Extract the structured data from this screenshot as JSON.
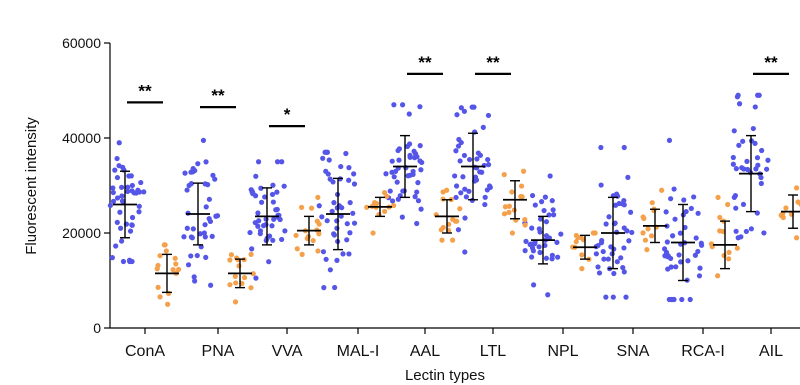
{
  "chart_data": {
    "type": "scatter",
    "xlabel": "Lectin types",
    "ylabel": "Fluorescent intensity",
    "ylim": [
      0,
      60000
    ],
    "yticks": [
      0,
      20000,
      40000,
      60000
    ],
    "categories": [
      "ConA",
      "PNA",
      "VVA",
      "MAL-I",
      "AAL",
      "LTL",
      "NPL",
      "SNA",
      "RCA-I",
      "AIL"
    ],
    "colors": {
      "group1": "#5555e8",
      "group2": "#f5a04a"
    },
    "series": [
      {
        "means": [
          26000,
          24000,
          23500,
          24000,
          34000,
          34000,
          18500,
          20000,
          18000,
          32500
        ],
        "sd": [
          7000,
          6500,
          6000,
          7500,
          6500,
          7000,
          5000,
          7500,
          8000,
          8000
        ],
        "n": [
          45,
          40,
          45,
          45,
          45,
          45,
          40,
          45,
          45,
          40
        ],
        "ranges": [
          [
            14000,
            39000
          ],
          [
            9000,
            39500
          ],
          [
            10500,
            35000
          ],
          [
            8500,
            37000
          ],
          [
            22000,
            47000
          ],
          [
            16000,
            46500
          ],
          [
            7000,
            32000
          ],
          [
            6500,
            38000
          ],
          [
            6000,
            39500
          ],
          [
            19000,
            49000
          ]
        ]
      },
      {
        "means": [
          11500,
          11500,
          20500,
          25500,
          23500,
          27000,
          17000,
          21500,
          17500,
          24500
        ],
        "sd": [
          4000,
          3000,
          3000,
          2000,
          3500,
          4000,
          2500,
          3500,
          5000,
          3500
        ],
        "n": [
          15,
          15,
          15,
          13,
          15,
          15,
          13,
          12,
          13,
          12
        ],
        "ranges": [
          [
            5000,
            17500
          ],
          [
            5500,
            15500
          ],
          [
            15500,
            27500
          ],
          [
            20000,
            28500
          ],
          [
            18500,
            29000
          ],
          [
            20000,
            33000
          ],
          [
            12500,
            20000
          ],
          [
            16500,
            29000
          ],
          [
            11000,
            27500
          ],
          [
            19000,
            29500
          ]
        ]
      }
    ],
    "significance": [
      {
        "category": "ConA",
        "label": "**",
        "y": 47500
      },
      {
        "category": "PNA",
        "label": "**",
        "y": 46500
      },
      {
        "category": "VVA",
        "label": "*",
        "y": 42500
      },
      {
        "category": "AAL",
        "label": "**",
        "y": 53500
      },
      {
        "category": "LTL",
        "label": "**",
        "y": 53500
      },
      {
        "category": "AIL",
        "label": "**",
        "y": 53500
      }
    ]
  }
}
